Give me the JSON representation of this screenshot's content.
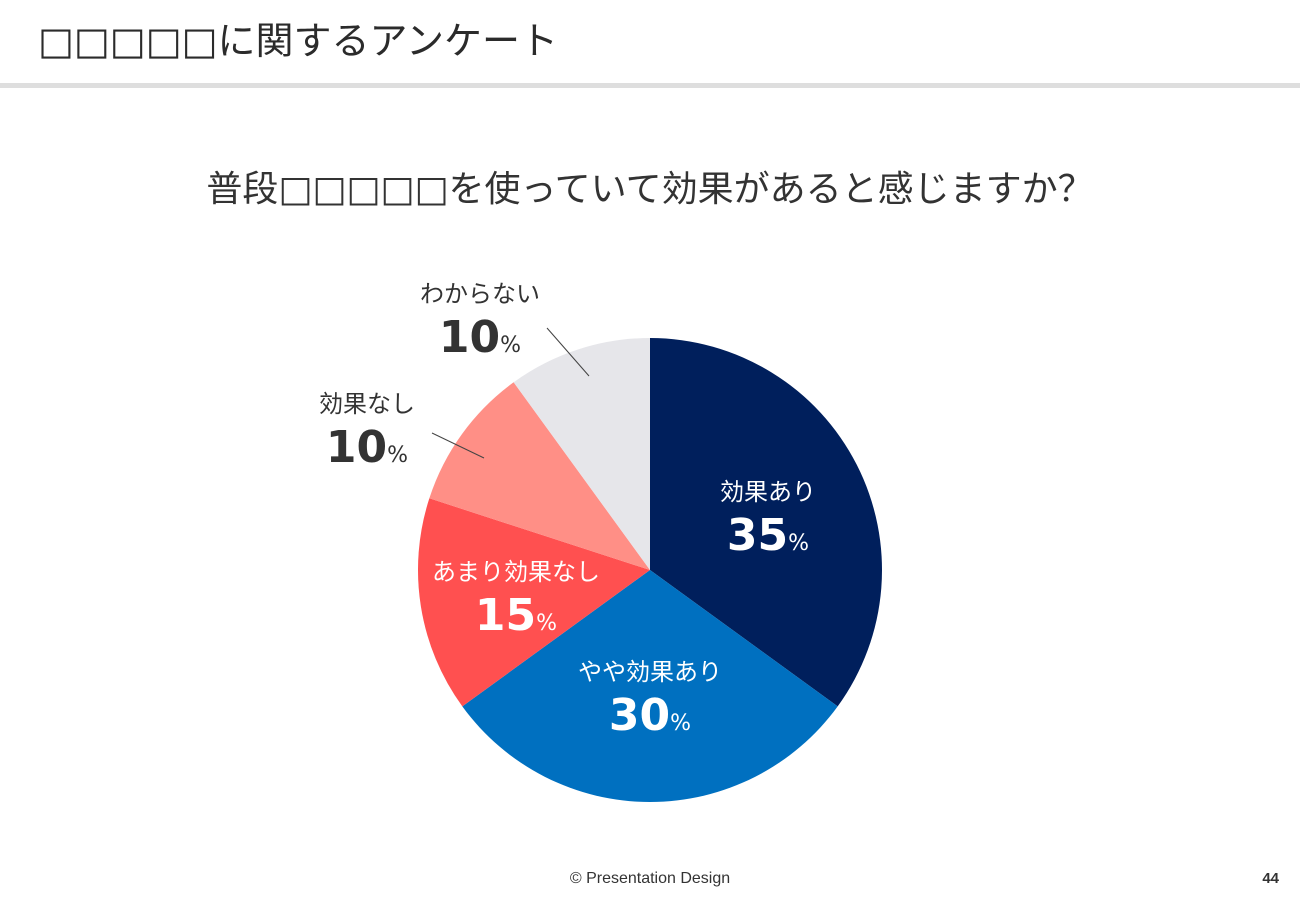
{
  "slide": {
    "title": "□□□□□に関するアンケート",
    "question": "普段□□□□□を使っていて効果があると感じますか？",
    "footer": "© Presentation Design",
    "page_number": "44"
  },
  "chart_data": {
    "type": "pie",
    "unit": "%",
    "slices": [
      {
        "label": "効果あり",
        "value": 35,
        "color": "#001f5c",
        "text_color": "#ffffff"
      },
      {
        "label": "やや効果あり",
        "value": 30,
        "color": "#0070c0",
        "text_color": "#ffffff"
      },
      {
        "label": "あまり効果なし",
        "value": 15,
        "color": "#ff5050",
        "text_color": "#ffffff"
      },
      {
        "label": "効果なし",
        "value": 10,
        "color": "#ff8f86",
        "text_color": "#333333"
      },
      {
        "label": "わからない",
        "value": 10,
        "color": "#e6e6ea",
        "text_color": "#333333"
      }
    ]
  }
}
